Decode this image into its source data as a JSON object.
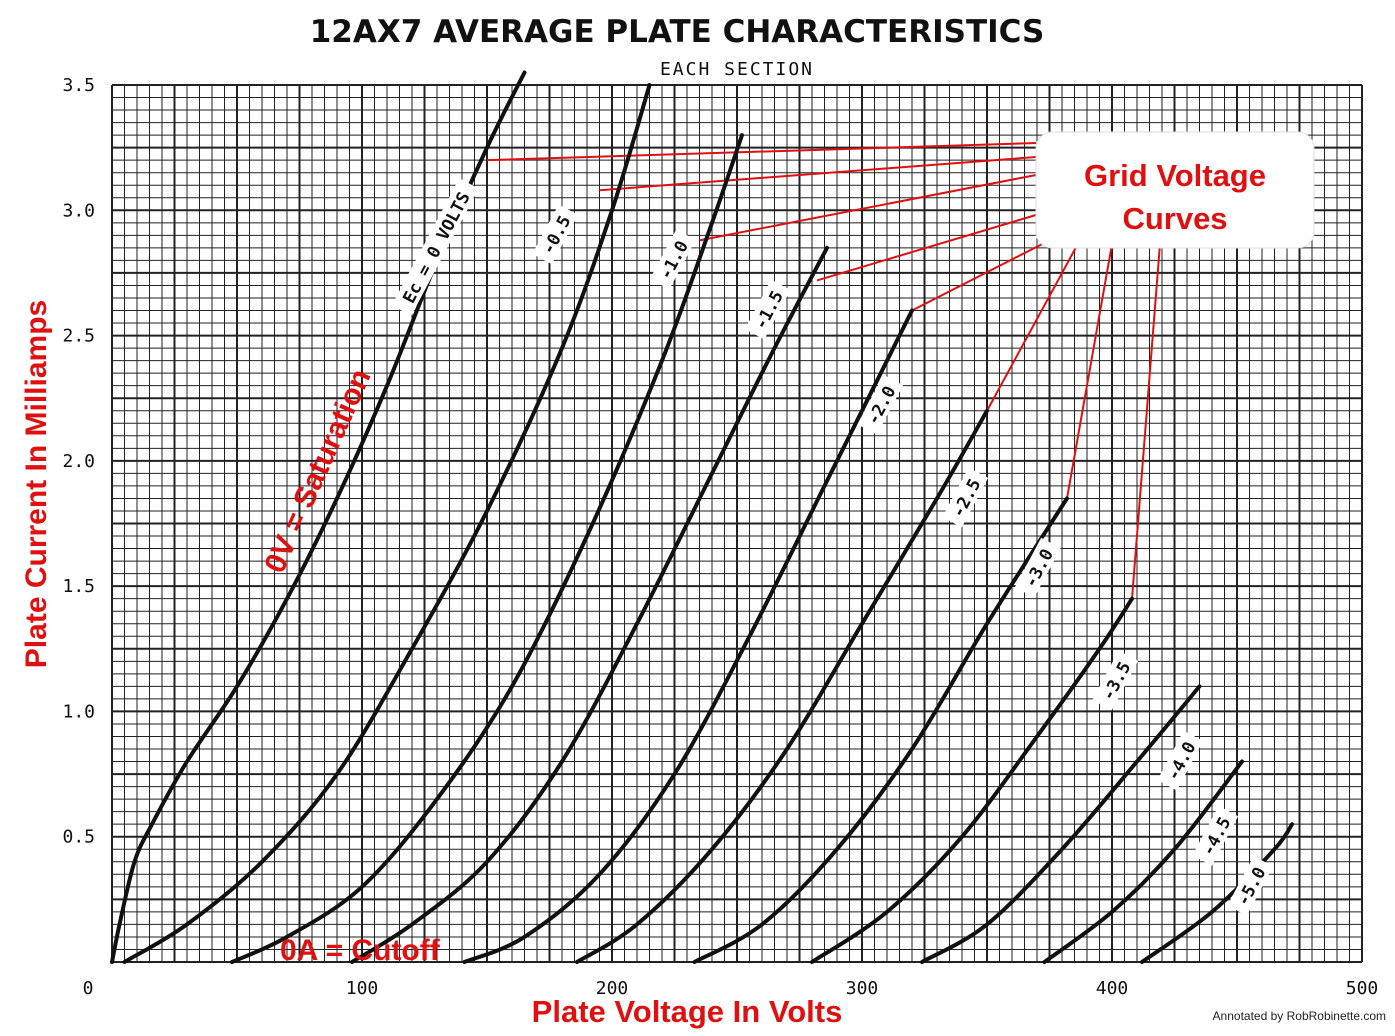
{
  "chart_data": {
    "type": "line",
    "title": "12AX7 AVERAGE PLATE CHARACTERISTICS",
    "subtitle": "EACH SECTION",
    "xlabel": "Plate Voltage In Volts",
    "ylabel": "Plate Current In Milliamps",
    "xlim": [
      0,
      500
    ],
    "ylim": [
      0,
      3.5
    ],
    "grid": true,
    "x_ticks": [
      "0",
      "100",
      "200",
      "300",
      "400",
      "500"
    ],
    "y_ticks": [
      "0.5",
      "1.0",
      "1.5",
      "2.0",
      "2.5",
      "3.0",
      "3.5"
    ],
    "series": [
      {
        "name": "Ec = 0 VOLTS",
        "label": "Ec = 0 VOLTS",
        "label_at": [
          130,
          2.85
        ],
        "x": [
          0,
          3,
          9,
          16,
          30,
          50,
          70,
          90,
          110,
          130,
          150,
          165
        ],
        "y": [
          0,
          0.15,
          0.4,
          0.55,
          0.8,
          1.1,
          1.45,
          1.85,
          2.3,
          2.8,
          3.25,
          3.55
        ]
      },
      {
        "name": "-0.5",
        "label": "-0.5",
        "label_at": [
          178,
          2.9
        ],
        "x": [
          5,
          30,
          60,
          90,
          120,
          150,
          180,
          200,
          215
        ],
        "y": [
          0,
          0.15,
          0.4,
          0.75,
          1.25,
          1.8,
          2.45,
          3.0,
          3.5
        ]
      },
      {
        "name": "-1.0",
        "label": "-1.0",
        "label_at": [
          225,
          2.8
        ],
        "x": [
          48,
          70,
          100,
          130,
          160,
          190,
          220,
          240,
          252
        ],
        "y": [
          0,
          0.1,
          0.3,
          0.65,
          1.1,
          1.7,
          2.4,
          2.95,
          3.3
        ]
      },
      {
        "name": "-1.5",
        "label": "-1.5",
        "label_at": [
          263,
          2.6
        ],
        "x": [
          96,
          120,
          150,
          180,
          210,
          240,
          265,
          286
        ],
        "y": [
          0,
          0.15,
          0.4,
          0.8,
          1.35,
          1.95,
          2.45,
          2.85
        ]
      },
      {
        "name": "-2.0",
        "label": "-2.0",
        "label_at": [
          308,
          2.22
        ],
        "x": [
          141,
          165,
          195,
          225,
          255,
          285,
          305,
          320
        ],
        "y": [
          0,
          0.1,
          0.35,
          0.75,
          1.3,
          1.9,
          2.3,
          2.6
        ]
      },
      {
        "name": "-2.5",
        "label": "-2.5",
        "label_at": [
          342,
          1.85
        ],
        "x": [
          186,
          210,
          240,
          270,
          300,
          330,
          350
        ],
        "y": [
          0,
          0.15,
          0.45,
          0.85,
          1.35,
          1.85,
          2.2
        ]
      },
      {
        "name": "-3.0",
        "label": "-3.0",
        "label_at": [
          371,
          1.57
        ],
        "x": [
          233,
          260,
          290,
          320,
          350,
          382
        ],
        "y": [
          0,
          0.15,
          0.45,
          0.85,
          1.35,
          1.85
        ]
      },
      {
        "name": "-3.5",
        "label": "-3.5",
        "label_at": [
          402,
          1.12
        ],
        "x": [
          280,
          310,
          340,
          370,
          395,
          408
        ],
        "y": [
          0,
          0.2,
          0.5,
          0.9,
          1.25,
          1.45
        ]
      },
      {
        "name": "-4.0",
        "label": "-4.0",
        "label_at": [
          428,
          0.8
        ],
        "x": [
          324,
          350,
          380,
          410,
          435
        ],
        "y": [
          0,
          0.15,
          0.45,
          0.8,
          1.1
        ]
      },
      {
        "name": "-4.5",
        "label": "-4.5",
        "label_at": [
          442,
          0.5
        ],
        "x": [
          373,
          400,
          425,
          452
        ],
        "y": [
          0,
          0.2,
          0.45,
          0.8
        ]
      },
      {
        "name": "-5.0",
        "label": "-5.0",
        "label_at": [
          456,
          0.3
        ],
        "x": [
          412,
          440,
          465,
          472
        ],
        "y": [
          0,
          0.2,
          0.45,
          0.55
        ]
      }
    ],
    "annotations": [
      {
        "text": "0V = Saturation"
      },
      {
        "text": "0A = Cutoff"
      },
      {
        "text": "Grid Voltage"
      },
      {
        "text": "Curves"
      }
    ],
    "credit": "Annotated by RobRobinette.com"
  },
  "colors": {
    "curve": "#111111",
    "grid": "#222222",
    "annotation": "#e01010"
  }
}
